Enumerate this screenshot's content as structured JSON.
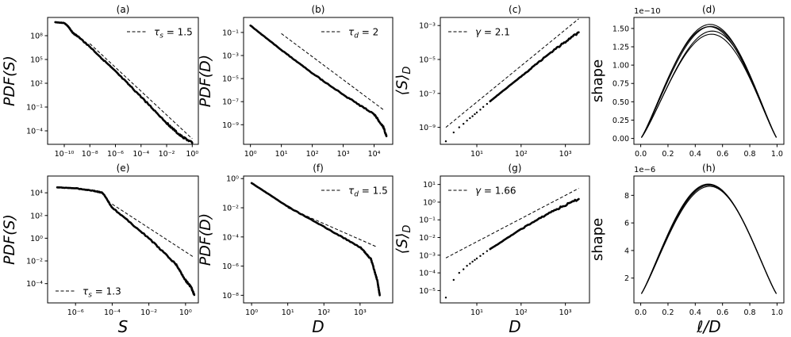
{
  "chart_data": [
    {
      "id": "a",
      "title": "(a)",
      "type": "line",
      "xscale": "log",
      "yscale": "log",
      "xlim": [
        5e-12,
        3
      ],
      "ylim": [
        2e-06,
        20000000000.0
      ],
      "xticks": [
        1e-10,
        1e-08,
        1e-06,
        0.0001,
        0.01,
        1
      ],
      "xticklabels": [
        "10⁻¹⁰",
        "10⁻⁸",
        "10⁻⁶",
        "10⁻⁴",
        "10⁻²",
        "10⁰"
      ],
      "yticks": [
        0.0001,
        0.1,
        100,
        100000.0,
        100000000.0
      ],
      "yticklabels": [
        "10⁻⁴",
        "10⁻¹",
        "10²",
        "10⁵",
        "10⁸"
      ],
      "ylabel": "PDF(S)",
      "xlabel": "",
      "legend": {
        "label": "τ_s = 1.5",
        "text": "τ",
        "sub": "s",
        "rest": " = 1.5",
        "loc": "upper right"
      },
      "series": [
        {
          "style": "solid",
          "x": [
            2e-11,
            1e-10,
            2e-10,
            5e-10,
            1e-09,
            1e-08,
            1e-06,
            0.0001,
            0.01,
            0.1,
            1
          ],
          "y": [
            5000000000.0,
            4000000000.0,
            1500000000.0,
            200000000.0,
            100000000.0,
            4000000.0,
            3000.0,
            2,
            0.001,
            3e-05,
            3e-06
          ]
        },
        {
          "style": "dashed",
          "x": [
            1e-08,
            1
          ],
          "y": [
            10000000.0,
            1e-05
          ]
        }
      ]
    },
    {
      "id": "b",
      "title": "(b)",
      "type": "line",
      "xscale": "log",
      "yscale": "log",
      "xlim": [
        0.6,
        40000.0
      ],
      "ylim": [
        2e-11,
        2
      ],
      "xticks": [
        1,
        10,
        100,
        1000,
        10000
      ],
      "xticklabels": [
        "10⁰",
        "10¹",
        "10²",
        "10³",
        "10⁴"
      ],
      "yticks": [
        1e-09,
        1e-07,
        1e-05,
        0.001,
        0.1
      ],
      "yticklabels": [
        "10⁻⁹",
        "10⁻⁷",
        "10⁻⁵",
        "10⁻³",
        "10⁻¹"
      ],
      "ylabel": "PDF(D)",
      "xlabel": "",
      "legend": {
        "label": "τ_d = 2",
        "text": "τ",
        "sub": "d",
        "rest": " = 2",
        "loc": "upper right"
      },
      "series": [
        {
          "style": "solid",
          "x": [
            1,
            10,
            100,
            1000,
            10000,
            20000,
            25000
          ],
          "y": [
            0.4,
            0.003,
            3e-05,
            4e-07,
            8e-09,
            6e-10,
            1e-10
          ]
        },
        {
          "style": "dashed",
          "x": [
            10,
            20000
          ],
          "y": [
            0.08,
            2e-08
          ]
        }
      ]
    },
    {
      "id": "c",
      "title": "(c)",
      "type": "scatter",
      "xscale": "log",
      "yscale": "log",
      "xlim": [
        1.5,
        3500
      ],
      "ylim": [
        1e-10,
        0.003
      ],
      "xticks": [
        10,
        100,
        1000
      ],
      "xticklabels": [
        "10¹",
        "10²",
        "10³"
      ],
      "yticks": [
        1e-09,
        1e-07,
        1e-05,
        0.001
      ],
      "yticklabels": [
        "10⁻⁹",
        "10⁻⁷",
        "10⁻⁵",
        "10⁻³"
      ],
      "ylabel": "⟨S⟩_D",
      "xlabel": "",
      "legend": {
        "label": "γ = 2.1",
        "text": "γ",
        "sub": "",
        "rest": " = 2.1",
        "loc": "upper left"
      },
      "series": [
        {
          "style": "dots",
          "x": [
            2,
            3,
            4,
            5,
            6,
            7,
            8,
            9,
            10,
            12,
            14,
            17,
            20
          ],
          "y": [
            1.5e-10,
            5e-10,
            1e-09,
            1.6e-09,
            2.5e-09,
            3.5e-09,
            4.5e-09,
            6e-09,
            7.5e-09,
            1.1e-08,
            1.6e-08,
            2.4e-08,
            3.5e-08
          ]
        },
        {
          "style": "solid",
          "x": [
            20,
            100,
            500,
            2000
          ],
          "y": [
            3.5e-08,
            1e-06,
            3e-05,
            0.0004
          ]
        },
        {
          "style": "dashed",
          "x": [
            2,
            2000
          ],
          "y": [
            1e-09,
            0.0025
          ]
        }
      ]
    },
    {
      "id": "d",
      "title": "(d)",
      "type": "line",
      "xscale": "linear",
      "yscale": "linear",
      "xlim": [
        -0.05,
        1.05
      ],
      "ylim": [
        -0.08,
        1.65
      ],
      "offset_text": "1e−10",
      "xticks": [
        0,
        0.2,
        0.4,
        0.6,
        0.8,
        1.0
      ],
      "xticklabels": [
        "0.0",
        "0.2",
        "0.4",
        "0.6",
        "0.8",
        "1.0"
      ],
      "yticks": [
        0,
        0.25,
        0.5,
        0.75,
        1.0,
        1.25,
        1.5
      ],
      "yticklabels": [
        "0.00",
        "0.25",
        "0.50",
        "0.75",
        "1.00",
        "1.25",
        "1.50"
      ],
      "ylabel": "shape",
      "xlabel": "",
      "shape_curves": [
        {
          "peak": 1.55,
          "skew": 0.08
        },
        {
          "peak": 1.5,
          "skew": 0.14
        },
        {
          "peak": 1.53,
          "skew": 0.02
        },
        {
          "peak": 1.45,
          "skew": 0.11
        },
        {
          "peak": 1.57,
          "skew": 0.05
        }
      ]
    },
    {
      "id": "e",
      "title": "(e)",
      "type": "line",
      "xscale": "log",
      "yscale": "log",
      "xlim": [
        3e-08,
        5
      ],
      "ylim": [
        2e-06,
        300000.0
      ],
      "xticks": [
        1e-06,
        0.0001,
        0.01,
        1
      ],
      "xticklabels": [
        "10⁻⁶",
        "10⁻⁴",
        "10⁻²",
        "10⁰"
      ],
      "yticks": [
        0.0001,
        0.01,
        1,
        100,
        10000
      ],
      "yticklabels": [
        "10⁻⁴",
        "10⁻²",
        "10⁰",
        "10²",
        "10⁴"
      ],
      "ylabel": "PDF(S)",
      "xlabel": "S",
      "legend": {
        "label": "τ_s = 1.3",
        "text": "τ",
        "sub": "s",
        "rest": " = 1.3",
        "loc": "lower left"
      },
      "series": [
        {
          "style": "solid",
          "x": [
            1e-07,
            1e-06,
            1e-05,
            3e-05,
            0.0001,
            0.01,
            0.3,
            1,
            2,
            3
          ],
          "y": [
            30000.0,
            25000.0,
            15000.0,
            10000.0,
            500,
            1,
            0.005,
            0.0002,
            5e-05,
            1e-05
          ]
        },
        {
          "style": "dashed",
          "x": [
            0.0001,
            3
          ],
          "y": [
            1000.0,
            0.02
          ]
        }
      ]
    },
    {
      "id": "f",
      "title": "(f)",
      "type": "line",
      "xscale": "log",
      "yscale": "log",
      "xlim": [
        0.6,
        8000
      ],
      "ylim": [
        3e-09,
        1.5
      ],
      "xticks": [
        1,
        10,
        100,
        1000
      ],
      "xticklabels": [
        "10⁰",
        "10¹",
        "10²",
        "10³"
      ],
      "yticks": [
        1e-08,
        1e-06,
        0.0001,
        0.01,
        1
      ],
      "yticklabels": [
        "10⁻⁸",
        "10⁻⁶",
        "10⁻⁴",
        "10⁻²",
        "10⁰"
      ],
      "ylabel": "PDF(D)",
      "xlabel": "D",
      "legend": {
        "label": "τ_d = 1.5",
        "text": "τ",
        "sub": "d",
        "rest": " = 1.5",
        "loc": "upper right"
      },
      "series": [
        {
          "style": "solid",
          "x": [
            1,
            10,
            100,
            1000,
            2000,
            3000,
            3500
          ],
          "y": [
            0.5,
            0.012,
            0.0005,
            2e-05,
            3e-06,
            1e-07,
            1e-08
          ]
        },
        {
          "style": "dashed",
          "x": [
            10,
            3000
          ],
          "y": [
            0.01,
            2e-05
          ]
        }
      ]
    },
    {
      "id": "g",
      "title": "(g)",
      "type": "scatter",
      "xscale": "log",
      "yscale": "log",
      "xlim": [
        1.5,
        3500
      ],
      "ylim": [
        2e-06,
        30
      ],
      "xticks": [
        10,
        100,
        1000
      ],
      "xticklabels": [
        "10¹",
        "10²",
        "10³"
      ],
      "yticks": [
        1e-05,
        0.0001,
        0.001,
        0.01,
        0.1,
        1,
        10
      ],
      "yticklabels": [
        "10⁻⁵",
        "10⁻⁴",
        "10⁻³",
        "10⁻²",
        "10⁻¹",
        "10⁰",
        "10¹"
      ],
      "ylabel": "⟨S⟩_D",
      "xlabel": "D",
      "legend": {
        "label": "γ = 1.66",
        "text": "γ",
        "sub": "",
        "rest": " = 1.66",
        "loc": "upper left"
      },
      "series": [
        {
          "style": "dots",
          "x": [
            2,
            3,
            4,
            5,
            6,
            7,
            8,
            9,
            10,
            12,
            14,
            17,
            20
          ],
          "y": [
            4e-06,
            4e-05,
            0.0001,
            0.00016,
            0.00025,
            0.00033,
            0.00043,
            0.00054,
            0.00065,
            0.0009,
            0.0012,
            0.0017,
            0.0022
          ]
        },
        {
          "style": "solid",
          "x": [
            20,
            100,
            500,
            2000
          ],
          "y": [
            0.0022,
            0.03,
            0.3,
            1.5
          ]
        },
        {
          "style": "dashed",
          "x": [
            2,
            2000
          ],
          "y": [
            0.0007,
            6
          ]
        }
      ]
    },
    {
      "id": "h",
      "title": "(h)",
      "type": "line",
      "xscale": "linear",
      "yscale": "linear",
      "xlim": [
        -0.05,
        1.05
      ],
      "ylim": [
        0.2,
        9.4
      ],
      "offset_text": "1e−6",
      "xticks": [
        0,
        0.2,
        0.4,
        0.6,
        0.8,
        1.0
      ],
      "xticklabels": [
        "0.0",
        "0.2",
        "0.4",
        "0.6",
        "0.8",
        "1.0"
      ],
      "yticks": [
        2,
        4,
        6,
        8
      ],
      "yticklabels": [
        "2",
        "4",
        "6",
        "8"
      ],
      "ylabel": "shape",
      "xlabel": "ℓ/D",
      "shape_curves": [
        {
          "peak": 8.8,
          "skew": 0.0,
          "base": 0.8
        },
        {
          "peak": 8.7,
          "skew": 0.03,
          "base": 0.8
        },
        {
          "peak": 8.85,
          "skew": -0.02,
          "base": 0.8
        },
        {
          "peak": 8.75,
          "skew": 0.01,
          "base": 0.8
        }
      ]
    }
  ]
}
